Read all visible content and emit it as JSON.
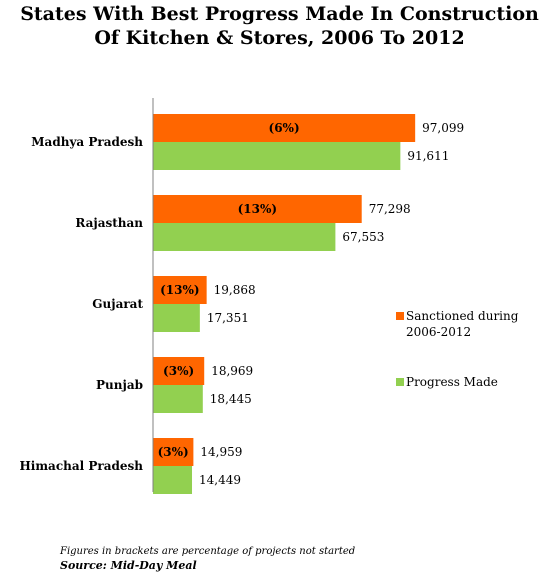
{
  "chart_data": {
    "type": "bar",
    "orientation": "horizontal",
    "title_line1": "States With Best Progress Made In Construction",
    "title_line2": "Of Kitchen & Stores, 2006 To 2012",
    "categories": [
      "Madhya Pradesh",
      "Rajasthan",
      "Gujarat",
      "Punjab",
      "Himachal Pradesh"
    ],
    "series": [
      {
        "name": "Sanctioned during 2006-2012",
        "legend_lines": [
          "Sanctioned during",
          "2006-2012"
        ],
        "color": "#ff6600",
        "values": [
          97099,
          77298,
          19868,
          18969,
          14959
        ],
        "labels": [
          "97,099",
          "77,298",
          "19,868",
          "18,969",
          "14,959"
        ],
        "inner_labels": [
          "(6%)",
          "(13%)",
          "(13%)",
          "(3%)",
          "(3%)"
        ]
      },
      {
        "name": "Progress Made",
        "legend_lines": [
          "Progress Made"
        ],
        "color": "#92d050",
        "values": [
          91611,
          67553,
          17351,
          18445,
          14449
        ],
        "labels": [
          "91,611",
          "67,553",
          "17,351",
          "18,445",
          "14,449"
        ]
      }
    ],
    "xlim": [
      0,
      100000
    ],
    "grid": false,
    "legend": "right"
  },
  "footnote": "Figures in brackets are percentage of projects not started",
  "source": "Source: Mid-Day Meal"
}
